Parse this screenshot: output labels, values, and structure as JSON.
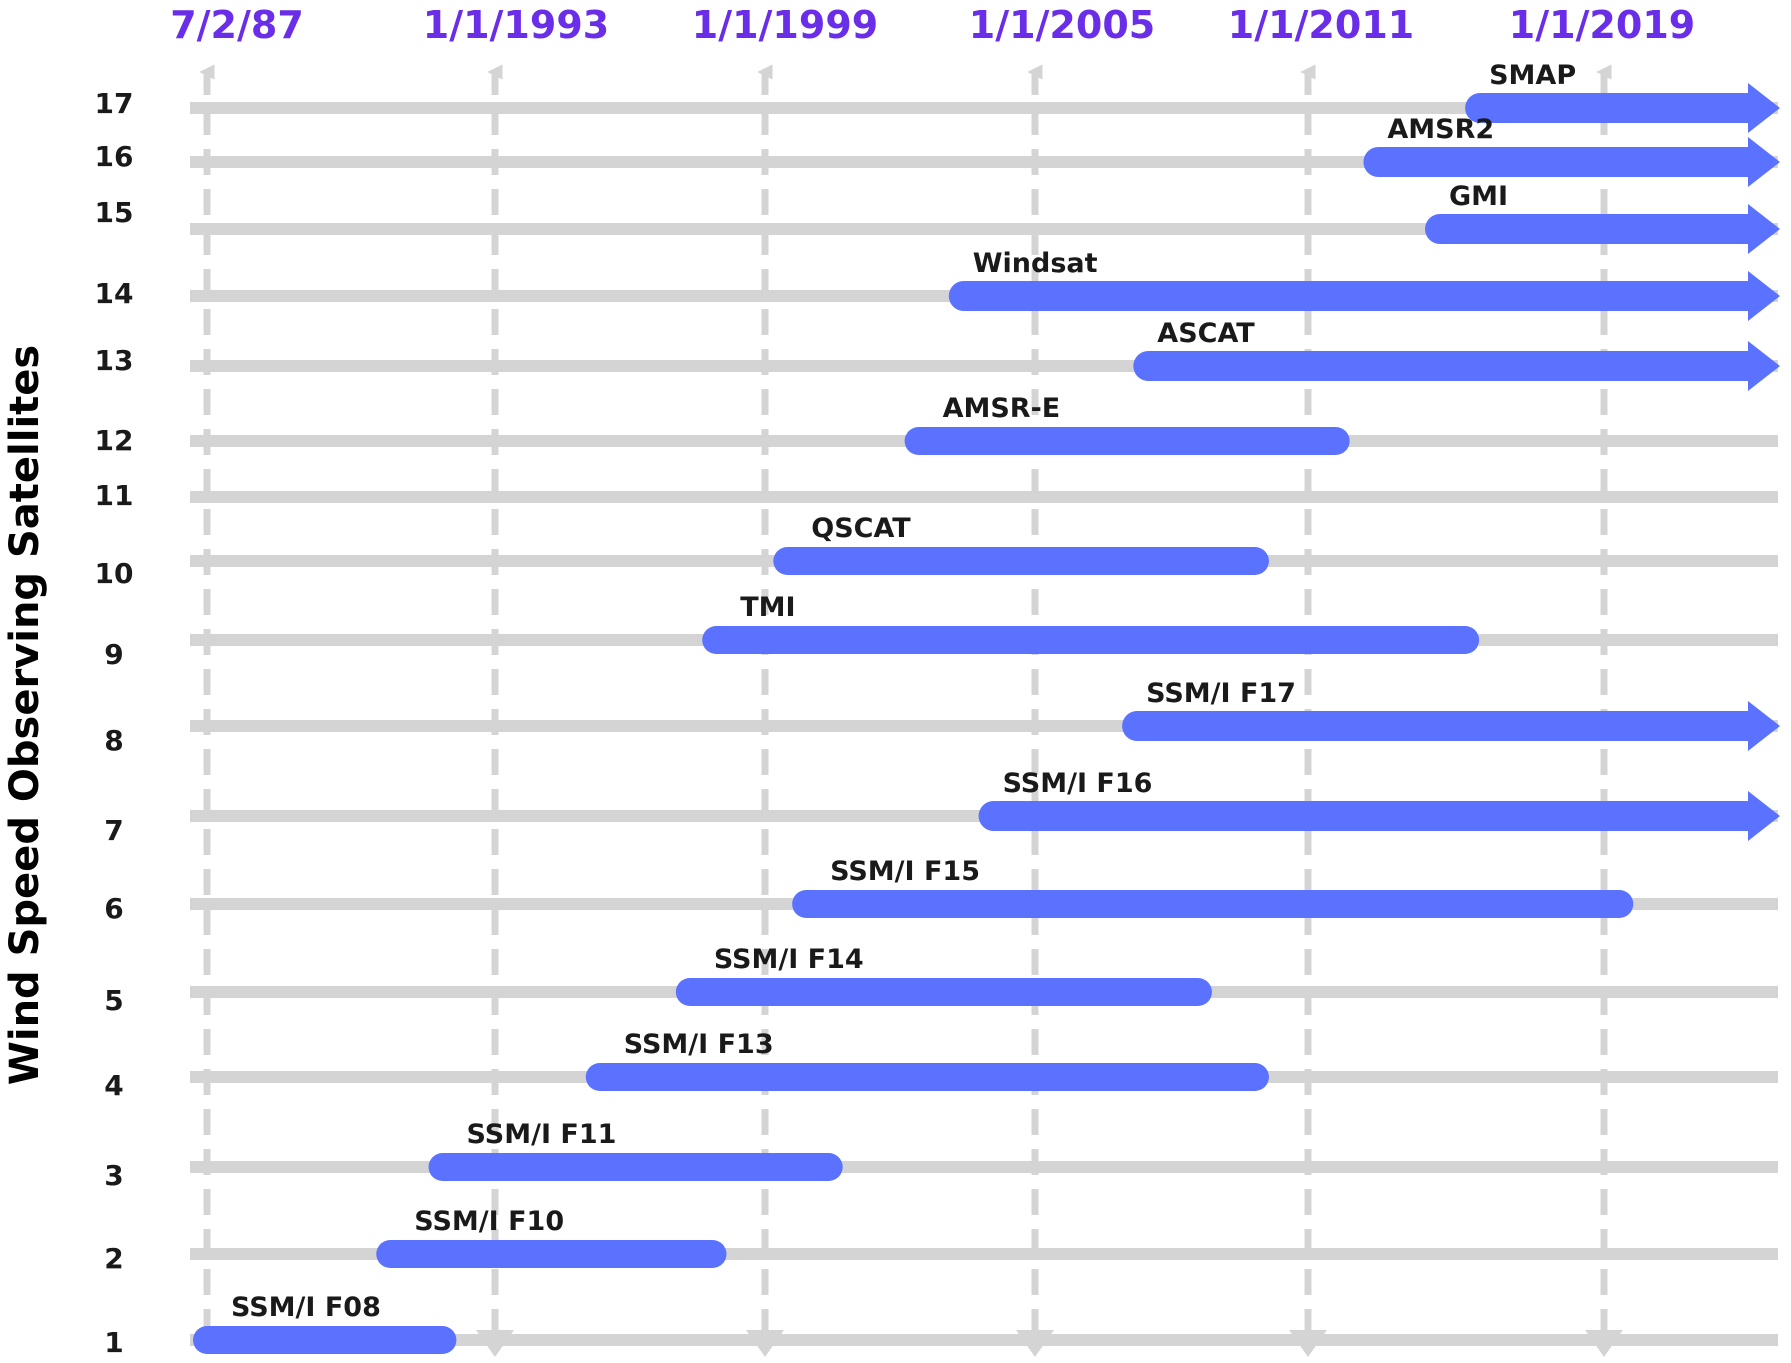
{
  "chart_data": {
    "type": "gantt",
    "ylabel": "Wind Speed Observing Satellites",
    "x_axis_labels": [
      "7/2/87",
      "1/1/1993",
      "1/1/1999",
      "1/1/2005",
      "1/1/2011",
      "1/1/2019"
    ],
    "x_axis_dates": [
      "1987-07-02",
      "1993-01-01",
      "1999-01-01",
      "2005-01-01",
      "2011-01-01",
      "2019-01-01"
    ],
    "x_range": [
      "1987-07-02",
      "2022-12-31"
    ],
    "colors": {
      "accent": "#6a2ee8",
      "bar": "#5a72ff",
      "track": "#d4d4d4",
      "gridline": "#d4d4d4"
    },
    "rows": [
      {
        "id": 1,
        "name": "SSM/I F08",
        "start": "1987-07-02",
        "end": "1991-12-31",
        "ongoing": false
      },
      {
        "id": 2,
        "name": "SSM/I F10",
        "start": "1991-01-01",
        "end": "1997-11-01",
        "ongoing": false
      },
      {
        "id": 3,
        "name": "SSM/I F11",
        "start": "1992-01-01",
        "end": "2000-06-01",
        "ongoing": false
      },
      {
        "id": 4,
        "name": "SSM/I F13",
        "start": "1995-05-01",
        "end": "2009-11-01",
        "ongoing": false
      },
      {
        "id": 5,
        "name": "SSM/I F14",
        "start": "1997-05-01",
        "end": "2008-08-01",
        "ongoing": false
      },
      {
        "id": 6,
        "name": "SSM/I F15",
        "start": "1999-12-01",
        "end": "2019-06-01",
        "ongoing": false
      },
      {
        "id": 7,
        "name": "SSM/I F16",
        "start": "2003-10-01",
        "end": null,
        "ongoing": true
      },
      {
        "id": 8,
        "name": "SSM/I F17",
        "start": "2006-12-01",
        "end": null,
        "ongoing": true
      },
      {
        "id": 9,
        "name": "TMI",
        "start": "1997-12-01",
        "end": "2015-04-01",
        "ongoing": false
      },
      {
        "id": 10,
        "name": "QSCAT",
        "start": "1999-07-01",
        "end": "2009-11-01",
        "ongoing": false
      },
      {
        "id": 11,
        "name": "",
        "start": null,
        "end": null,
        "ongoing": false
      },
      {
        "id": 12,
        "name": "AMSR-E",
        "start": "2002-06-01",
        "end": "2011-10-01",
        "ongoing": false
      },
      {
        "id": 13,
        "name": "ASCAT",
        "start": "2007-03-01",
        "end": null,
        "ongoing": true
      },
      {
        "id": 14,
        "name": "Windsat",
        "start": "2003-02-01",
        "end": null,
        "ongoing": true
      },
      {
        "id": 15,
        "name": "GMI",
        "start": "2014-03-01",
        "end": null,
        "ongoing": true
      },
      {
        "id": 16,
        "name": "AMSR2",
        "start": "2012-07-01",
        "end": null,
        "ongoing": true
      },
      {
        "id": 17,
        "name": "SMAP",
        "start": "2015-04-01",
        "end": null,
        "ongoing": true
      }
    ]
  }
}
